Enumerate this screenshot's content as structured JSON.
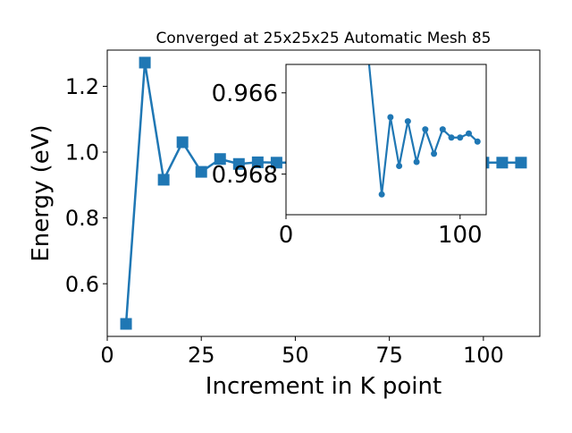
{
  "chart_data": [
    {
      "type": "line",
      "title": "Converged at 25x25x25 Automatic Mesh 85",
      "xlabel": "Increment in K point",
      "ylabel": "Energy (eV)",
      "xlim": [
        0,
        115
      ],
      "ylim": [
        0.44,
        1.31
      ],
      "xticks": [
        0,
        25,
        50,
        75,
        100
      ],
      "xtick_labels": [
        "0",
        "25",
        "50",
        "75",
        "100"
      ],
      "yticks": [
        0.6,
        0.8,
        1.0,
        1.2
      ],
      "ytick_labels": [
        "0.6",
        "0.8",
        "1.0",
        "1.2"
      ],
      "marker": "square",
      "color": "#1f77b4",
      "grid": false,
      "series": [
        {
          "x": [
            5,
            10,
            15,
            20,
            25,
            30,
            35,
            40,
            45,
            50,
            55,
            60,
            65,
            70,
            75,
            80,
            85,
            90,
            95,
            100,
            105,
            110
          ],
          "y": [
            0.478,
            1.272,
            0.916,
            1.03,
            0.94,
            0.979,
            0.964,
            0.969,
            0.968,
            0.968,
            0.968,
            0.968,
            0.968,
            0.968,
            0.968,
            0.968,
            0.968,
            0.968,
            0.968,
            0.968,
            0.968,
            0.968
          ]
        }
      ]
    },
    {
      "type": "line",
      "title": "",
      "xlim": [
        0,
        115
      ],
      "ylim": [
        0.969,
        0.9653
      ],
      "xticks": [
        0,
        100
      ],
      "xtick_labels": [
        "0",
        "100"
      ],
      "yticks": [
        0.966,
        0.968
      ],
      "ytick_labels": [
        "0.966",
        "0.968"
      ],
      "marker": "circle",
      "color": "#1f77b4",
      "grid": false,
      "series": [
        {
          "x": [
            45,
            55,
            60,
            65,
            70,
            75,
            80,
            85,
            90,
            95,
            100,
            105,
            110
          ],
          "y": [
            0.9641,
            0.9685,
            0.9666,
            0.9678,
            0.9667,
            0.9677,
            0.9669,
            0.9675,
            0.9669,
            0.9671,
            0.9671,
            0.967,
            0.9672
          ]
        }
      ]
    }
  ]
}
